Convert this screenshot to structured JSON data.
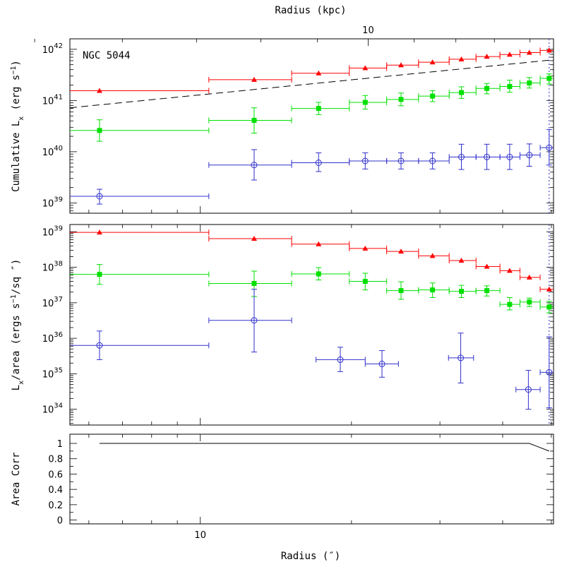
{
  "chart_data": {
    "type": "scatter",
    "top_axis_label": "Radius (kpc)",
    "top_axis_tick_labels": [
      {
        "value": 10,
        "label": "10"
      }
    ],
    "xlabel": "Radius (″)",
    "x_tick_labels": [
      {
        "value": 10,
        "label": "10"
      }
    ],
    "x_scale": "log",
    "xlim": [
      5.5,
      50.5
    ],
    "xlim_kpc": [
      5.38,
      14.7
    ],
    "colors": {
      "red": "#ff0000",
      "green": "#00e000",
      "blue": "#3030cc",
      "dashed": "#000000"
    },
    "panels": [
      {
        "id": "cumulative",
        "ylabel_main": "Cumulative L",
        "ylabel_sub": "x",
        "ylabel_tail": " (erg s",
        "ylabel_sup": "−1",
        "ylabel_end": ")",
        "y_scale": "log",
        "ylim": [
          6.3e+38,
          1.6e+42
        ],
        "y_tick_labels": [
          {
            "exp": 39,
            "label": "10"
          },
          {
            "exp": 40,
            "label": "10"
          },
          {
            "exp": 41,
            "label": "10"
          },
          {
            "exp": 42,
            "label": "10"
          }
        ],
        "annotation": "NGC 5044",
        "series": [
          {
            "color": "red",
            "marker": "triangle",
            "points": [
              {
                "x": 6.3,
                "xlo": 4.5,
                "xhi": 10.4,
                "y": 1.55e+41
              },
              {
                "x": 12.8,
                "xlo": 10.4,
                "xhi": 15.2,
                "y": 2.55e+41
              },
              {
                "x": 17.2,
                "xlo": 15.2,
                "xhi": 19.8,
                "y": 3.4e+41
              },
              {
                "x": 21.3,
                "xlo": 19.8,
                "xhi": 23.5,
                "y": 4.3e+41
              },
              {
                "x": 25.1,
                "xlo": 23.5,
                "xhi": 27.2,
                "y": 4.9e+41
              },
              {
                "x": 29.0,
                "xlo": 27.2,
                "xhi": 31.3,
                "y": 5.6e+41
              },
              {
                "x": 33.1,
                "xlo": 31.3,
                "xhi": 35.4,
                "y": 6.4e+41
              },
              {
                "x": 37.2,
                "xlo": 35.4,
                "xhi": 39.5,
                "y": 7.2e+41
              },
              {
                "x": 41.3,
                "xlo": 39.5,
                "xhi": 43.3,
                "y": 7.9e+41
              },
              {
                "x": 45.2,
                "xlo": 43.3,
                "xhi": 47.5,
                "y": 8.6e+41
              },
              {
                "x": 49.5,
                "xlo": 47.5,
                "xhi": 51.0,
                "y": 9.5e+41
              }
            ]
          },
          {
            "color": "green",
            "marker": "square",
            "points": [
              {
                "x": 6.3,
                "xlo": 4.5,
                "xhi": 10.4,
                "y": 2.6e+40,
                "ylo": 1.6e+40,
                "yhi": 4.2e+40
              },
              {
                "x": 12.8,
                "xlo": 10.4,
                "xhi": 15.2,
                "y": 4.1e+40,
                "ylo": 2.3e+40,
                "yhi": 7.2e+40
              },
              {
                "x": 17.2,
                "xlo": 15.2,
                "xhi": 19.8,
                "y": 7e+40,
                "ylo": 5.3e+40,
                "yhi": 9.2e+40
              },
              {
                "x": 21.3,
                "xlo": 19.8,
                "xhi": 23.5,
                "y": 9.2e+40,
                "ylo": 6.8e+40,
                "yhi": 1.25e+41
              },
              {
                "x": 25.1,
                "xlo": 23.5,
                "xhi": 27.2,
                "y": 1.05e+41,
                "ylo": 7.9e+40,
                "yhi": 1.4e+41
              },
              {
                "x": 29.0,
                "xlo": 27.2,
                "xhi": 31.3,
                "y": 1.22e+41,
                "ylo": 9.5e+40,
                "yhi": 1.55e+41
              },
              {
                "x": 33.1,
                "xlo": 31.3,
                "xhi": 35.4,
                "y": 1.43e+41,
                "ylo": 1.1e+41,
                "yhi": 1.85e+41
              },
              {
                "x": 37.2,
                "xlo": 35.4,
                "xhi": 39.5,
                "y": 1.72e+41,
                "ylo": 1.35e+41,
                "yhi": 2.15e+41
              },
              {
                "x": 41.3,
                "xlo": 39.5,
                "xhi": 43.3,
                "y": 1.88e+41,
                "ylo": 1.45e+41,
                "yhi": 2.5e+41
              },
              {
                "x": 45.2,
                "xlo": 43.3,
                "xhi": 47.5,
                "y": 2.2e+41,
                "ylo": 1.75e+41,
                "yhi": 2.8e+41
              },
              {
                "x": 49.5,
                "xlo": 47.5,
                "xhi": 51.0,
                "y": 2.7e+41,
                "ylo": 2.1e+41,
                "yhi": 3.3e+41
              }
            ]
          },
          {
            "color": "blue",
            "marker": "circle",
            "points": [
              {
                "x": 6.3,
                "xlo": 4.5,
                "xhi": 10.4,
                "y": 1.35e+39,
                "ylo": 9.5e+38,
                "yhi": 1.85e+39
              },
              {
                "x": 12.8,
                "xlo": 10.4,
                "xhi": 15.2,
                "y": 5.5e+39,
                "ylo": 2.8e+39,
                "yhi": 1.1e+40
              },
              {
                "x": 17.2,
                "xlo": 15.2,
                "xhi": 19.8,
                "y": 6.1e+39,
                "ylo": 4.1e+39,
                "yhi": 9.5e+39
              },
              {
                "x": 21.3,
                "xlo": 19.8,
                "xhi": 23.5,
                "y": 6.6e+39,
                "ylo": 4.6e+39,
                "yhi": 9.5e+39
              },
              {
                "x": 25.1,
                "xlo": 23.5,
                "xhi": 27.2,
                "y": 6.6e+39,
                "ylo": 4.6e+39,
                "yhi": 9.5e+39
              },
              {
                "x": 29.0,
                "xlo": 27.2,
                "xhi": 31.3,
                "y": 6.6e+39,
                "ylo": 4.6e+39,
                "yhi": 9.5e+39
              },
              {
                "x": 33.1,
                "xlo": 31.3,
                "xhi": 35.4,
                "y": 7.9e+39,
                "ylo": 4.5e+39,
                "yhi": 1.4e+40
              },
              {
                "x": 37.2,
                "xlo": 35.4,
                "xhi": 39.5,
                "y": 7.9e+39,
                "ylo": 4.5e+39,
                "yhi": 1.4e+40
              },
              {
                "x": 41.3,
                "xlo": 39.5,
                "xhi": 43.3,
                "y": 7.9e+39,
                "ylo": 4.5e+39,
                "yhi": 1.4e+40
              },
              {
                "x": 45.2,
                "xlo": 43.3,
                "xhi": 47.5,
                "y": 8.6e+39,
                "ylo": 5.2e+39,
                "yhi": 1.42e+40
              },
              {
                "x": 49.5,
                "xlo": 47.5,
                "xhi": 51.0,
                "y": 1.2e+40,
                "ylo": 5.5e+39,
                "yhi": 2.7e+40
              }
            ]
          }
        ],
        "dashed_line": [
          {
            "x": 5.5,
            "y": 7.2e+40
          },
          {
            "x": 51.0,
            "y": 6.3e+41
          }
        ],
        "vline_x": 49.5
      },
      {
        "id": "surface",
        "ylabel_main": "L",
        "ylabel_sub": "x",
        "ylabel_tail": "/area (ergs s",
        "ylabel_sup": "−1",
        "ylabel_end": "/sq ″)",
        "y_scale": "log",
        "ylim": [
          3.6e+33,
          1.6e+39
        ],
        "y_tick_labels": [
          {
            "exp": 34,
            "label": "10"
          },
          {
            "exp": 35,
            "label": "10"
          },
          {
            "exp": 36,
            "label": "10"
          },
          {
            "exp": 37,
            "label": "10"
          },
          {
            "exp": 38,
            "label": "10"
          },
          {
            "exp": 39,
            "label": "10"
          }
        ],
        "series": [
          {
            "color": "red",
            "marker": "triangle",
            "points": [
              {
                "x": 6.3,
                "xlo": 4.5,
                "xhi": 10.4,
                "y": 9.6e+38
              },
              {
                "x": 12.8,
                "xlo": 10.4,
                "xhi": 15.2,
                "y": 6.4e+38
              },
              {
                "x": 17.2,
                "xlo": 15.2,
                "xhi": 19.8,
                "y": 4.5e+38
              },
              {
                "x": 21.3,
                "xlo": 19.8,
                "xhi": 23.5,
                "y": 3.4e+38
              },
              {
                "x": 25.1,
                "xlo": 23.5,
                "xhi": 27.2,
                "y": 2.8e+38
              },
              {
                "x": 29.0,
                "xlo": 27.2,
                "xhi": 31.3,
                "y": 2.1e+38
              },
              {
                "x": 33.1,
                "xlo": 31.3,
                "xhi": 35.4,
                "y": 1.55e+38
              },
              {
                "x": 37.2,
                "xlo": 35.4,
                "xhi": 39.5,
                "y": 1.05e+38
              },
              {
                "x": 41.3,
                "xlo": 39.5,
                "xhi": 43.3,
                "y": 8e+37
              },
              {
                "x": 45.2,
                "xlo": 43.3,
                "xhi": 47.5,
                "y": 5.2e+37
              },
              {
                "x": 49.5,
                "xlo": 47.5,
                "xhi": 51.0,
                "y": 2.4e+37
              }
            ]
          },
          {
            "color": "green",
            "marker": "square",
            "points": [
              {
                "x": 6.3,
                "xlo": 4.5,
                "xhi": 10.4,
                "y": 6.3e+37,
                "ylo": 3.3e+37,
                "yhi": 1.2e+38
              },
              {
                "x": 12.8,
                "xlo": 10.4,
                "xhi": 15.2,
                "y": 3.5e+37,
                "ylo": 1.5e+37,
                "yhi": 7.8e+37
              },
              {
                "x": 17.2,
                "xlo": 15.2,
                "xhi": 19.8,
                "y": 6.5e+37,
                "ylo": 4.4e+37,
                "yhi": 9.8e+37
              },
              {
                "x": 21.3,
                "xlo": 19.8,
                "xhi": 23.5,
                "y": 4e+37,
                "ylo": 2.3e+37,
                "yhi": 6.8e+37
              },
              {
                "x": 25.1,
                "xlo": 23.5,
                "xhi": 27.2,
                "y": 2.2e+37,
                "ylo": 1.25e+37,
                "yhi": 3.9e+37
              },
              {
                "x": 29.0,
                "xlo": 27.2,
                "xhi": 31.3,
                "y": 2.3e+37,
                "ylo": 1.4e+37,
                "yhi": 3.6e+37
              },
              {
                "x": 33.1,
                "xlo": 31.3,
                "xhi": 35.4,
                "y": 2.1e+37,
                "ylo": 1.4e+37,
                "yhi": 3.1e+37
              },
              {
                "x": 37.2,
                "xlo": 35.4,
                "xhi": 39.5,
                "y": 2.2e+37,
                "ylo": 1.55e+37,
                "yhi": 3e+37
              },
              {
                "x": 41.3,
                "xlo": 39.5,
                "xhi": 43.3,
                "y": 9e+36,
                "ylo": 6.3e+36,
                "yhi": 1.4e+37
              },
              {
                "x": 45.2,
                "xlo": 43.3,
                "xhi": 47.5,
                "y": 1.05e+37,
                "ylo": 7.8e+36,
                "yhi": 1.35e+37
              },
              {
                "x": 49.5,
                "xlo": 47.5,
                "xhi": 51.0,
                "y": 7.6e+36,
                "ylo": 5.2e+36,
                "yhi": 1.1e+37
              }
            ]
          },
          {
            "color": "blue",
            "marker": "circle",
            "points": [
              {
                "x": 6.3,
                "xlo": 4.5,
                "xhi": 10.4,
                "y": 6.3e+35,
                "ylo": 2.5e+35,
                "yhi": 1.6e+36
              },
              {
                "x": 12.8,
                "xlo": 10.4,
                "xhi": 15.2,
                "y": 3.2e+36,
                "ylo": 4.1e+35,
                "yhi": 2.4e+37
              },
              {
                "x": 19.0,
                "xlo": 17.0,
                "xhi": 21.3,
                "y": 2.5e+35,
                "ylo": 1.15e+35,
                "yhi": 5.6e+35
              },
              {
                "x": 23.0,
                "xlo": 21.3,
                "xhi": 24.8,
                "y": 1.9e+35,
                "ylo": 8e+34,
                "yhi": 4.5e+35
              },
              {
                "x": 33.0,
                "xlo": 31.2,
                "xhi": 35.0,
                "y": 2.8e+35,
                "ylo": 5.5e+34,
                "yhi": 1.4e+36
              },
              {
                "x": 45.0,
                "xlo": 42.5,
                "xhi": 47.5,
                "y": 3.6e+34,
                "ylo": 1e+34,
                "yhi": 1.25e+35
              },
              {
                "x": 49.5,
                "xlo": 47.5,
                "xhi": 51.0,
                "y": 1.1e+35,
                "ylo": 1.1e+34,
                "yhi": 1.1e+36
              }
            ]
          }
        ],
        "vline_x": 49.5
      },
      {
        "id": "area-corr",
        "ylabel_main": "Area Corr",
        "y_scale": "linear",
        "ylim": [
          -0.05,
          1.12
        ],
        "y_tick_labels": [
          {
            "value": 0,
            "label": "0"
          },
          {
            "value": 0.2,
            "label": "0.2"
          },
          {
            "value": 0.4,
            "label": "0.4"
          },
          {
            "value": 0.6,
            "label": "0.6"
          },
          {
            "value": 0.8,
            "label": "0.8"
          },
          {
            "value": 1,
            "label": "1"
          }
        ],
        "line": [
          {
            "x": 6.3,
            "y": 1.0
          },
          {
            "x": 45.2,
            "y": 1.0
          },
          {
            "x": 49.5,
            "y": 0.9
          }
        ]
      }
    ]
  }
}
